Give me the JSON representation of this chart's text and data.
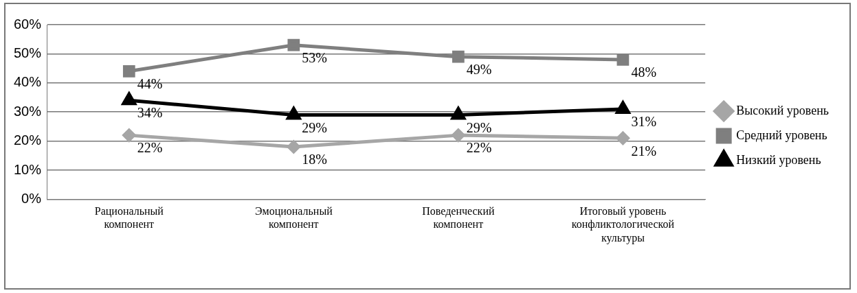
{
  "chart_data": {
    "type": "line",
    "categories": [
      "Рациональный компонент",
      "Эмоциональный компонент",
      "Поведенческий компонент",
      "Итоговый уровень конфликтологической культуры"
    ],
    "series": [
      {
        "name": "Высокий уровень",
        "color": "#a6a6a6",
        "marker": "diamond",
        "values": [
          22,
          18,
          22,
          21
        ],
        "value_labels": [
          "22%",
          "18%",
          "22%",
          "21%"
        ]
      },
      {
        "name": "Средний уровень",
        "color": "#7f7f7f",
        "marker": "square",
        "values": [
          44,
          53,
          49,
          48
        ],
        "value_labels": [
          "44%",
          "53%",
          "49%",
          "48%"
        ]
      },
      {
        "name": "Низкий уровень",
        "color": "#000000",
        "marker": "triangle",
        "values": [
          34,
          29,
          29,
          31
        ],
        "value_labels": [
          "34%",
          "29%",
          "29%",
          "31%"
        ]
      }
    ],
    "ylim": [
      0,
      60
    ],
    "yticks": [
      {
        "value": 0,
        "label": "0%"
      },
      {
        "value": 10,
        "label": "10%"
      },
      {
        "value": 20,
        "label": "20%"
      },
      {
        "value": 30,
        "label": "30%"
      },
      {
        "value": 40,
        "label": "40%"
      },
      {
        "value": 50,
        "label": "50%"
      },
      {
        "value": 60,
        "label": "60%"
      }
    ],
    "grid": "y",
    "legend": "right"
  }
}
